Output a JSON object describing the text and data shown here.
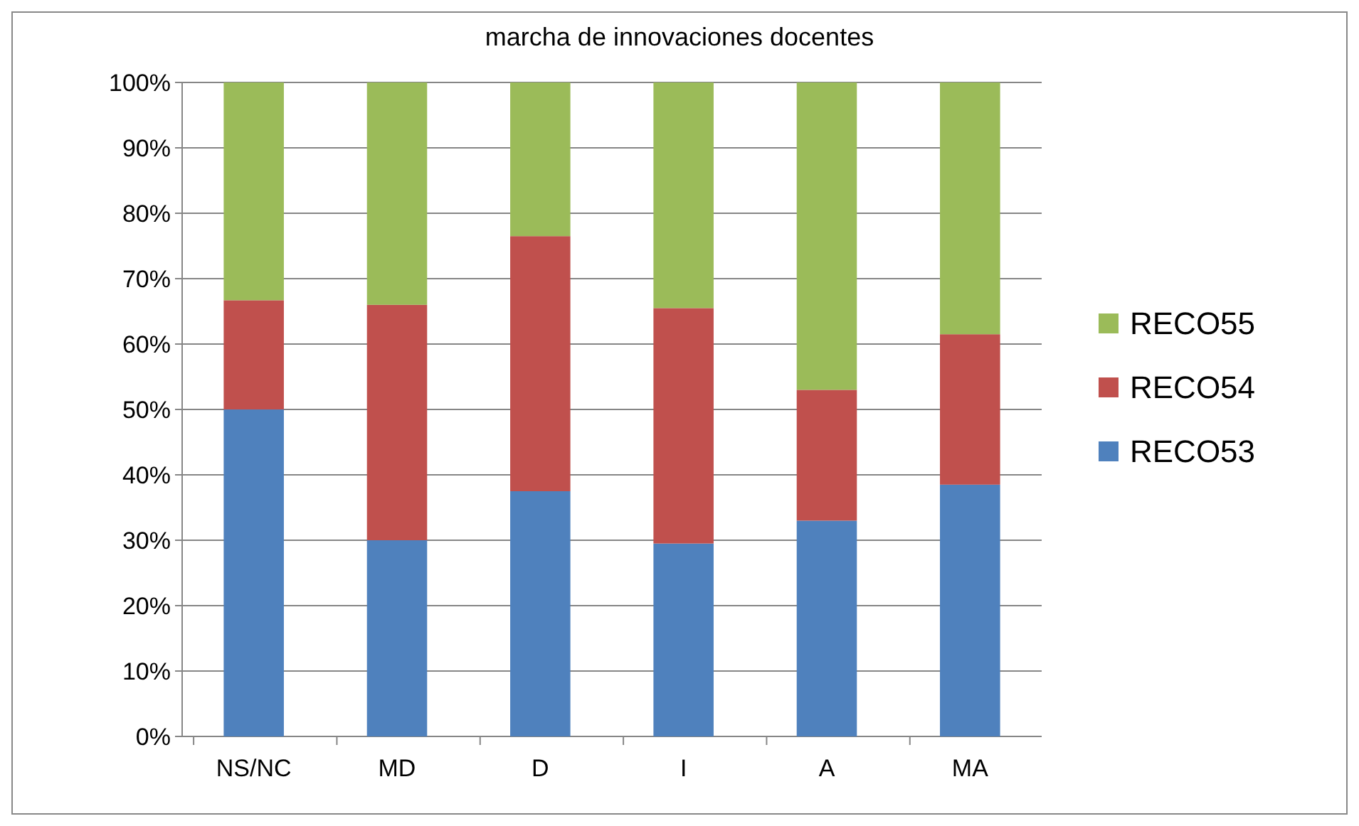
{
  "chart_data": {
    "type": "bar",
    "title": "marcha de innovaciones docentes",
    "stacked": true,
    "categories": [
      "NS/NC",
      "MD",
      "D",
      "I",
      "A",
      "MA"
    ],
    "series": [
      {
        "name": "RECO53",
        "color": "#4f81bd",
        "values": [
          50,
          30,
          37.5,
          29.5,
          33,
          38.5
        ]
      },
      {
        "name": "RECO54",
        "color": "#c0504d",
        "values": [
          16.7,
          36,
          39,
          36,
          20,
          23
        ]
      },
      {
        "name": "RECO55",
        "color": "#9bbb59",
        "values": [
          33.3,
          34,
          23.5,
          34.5,
          47,
          38.5
        ]
      }
    ],
    "ylim": [
      0,
      100
    ],
    "yticks": [
      {
        "value": 0,
        "label": "0%"
      },
      {
        "value": 10,
        "label": "10%"
      },
      {
        "value": 20,
        "label": "20%"
      },
      {
        "value": 30,
        "label": "30%"
      },
      {
        "value": 40,
        "label": "40%"
      },
      {
        "value": 50,
        "label": "50%"
      },
      {
        "value": 60,
        "label": "60%"
      },
      {
        "value": 70,
        "label": "70%"
      },
      {
        "value": 80,
        "label": "80%"
      },
      {
        "value": 90,
        "label": "90%"
      },
      {
        "value": 100,
        "label": "100%"
      }
    ],
    "grid": "y",
    "legend": "right"
  }
}
